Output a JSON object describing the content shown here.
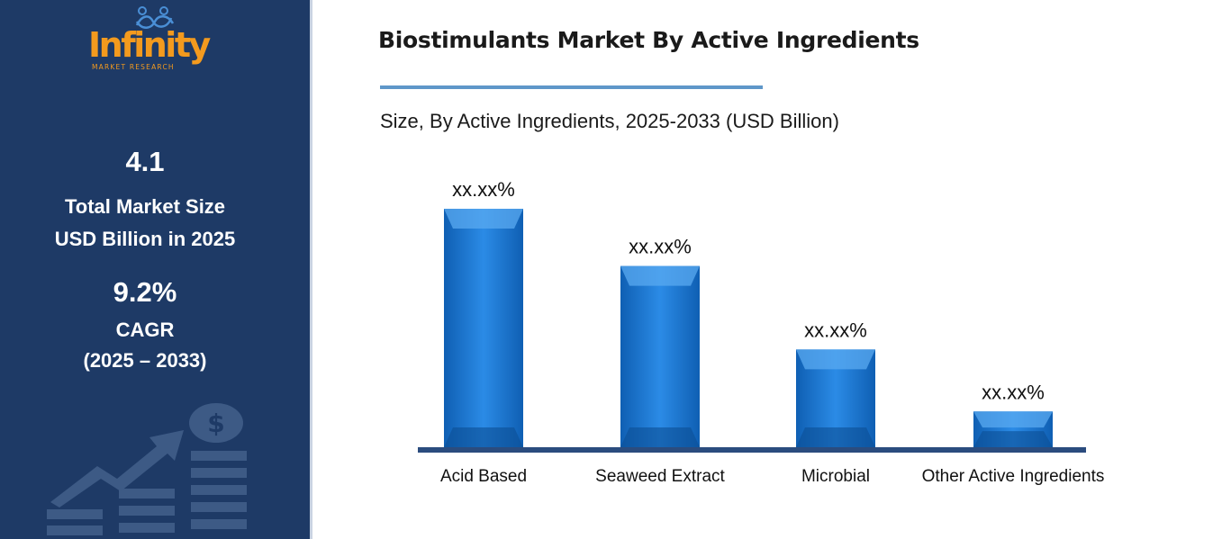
{
  "sidebar": {
    "logo": {
      "word": "Infinity",
      "sub": "MARKET RESEARCH",
      "icon": "people-infinity-icon"
    },
    "market_size_value": "4.1",
    "market_size_label_1": "Total Market Size",
    "market_size_label_2": "USD Billion in 2025",
    "cagr_value": "9.2%",
    "cagr_label": "CAGR",
    "cagr_period": "(2025 – 2033)",
    "decor_icon": "finance-growth-icon"
  },
  "chart_data": {
    "type": "bar",
    "title": "Biostimulants Market By Active Ingredients",
    "subtitle": "Size, By Active Ingredients, 2025-2033 (USD Billion)",
    "categories": [
      "Acid Based",
      "Seaweed Extract",
      "Microbial",
      "Other Active Ingredients"
    ],
    "values": [
      100,
      76,
      41,
      15
    ],
    "data_labels": [
      "xx.xx%",
      "xx.xx%",
      "xx.xx%",
      "xx.xx%"
    ],
    "ylim": [
      0,
      100
    ],
    "grid": false,
    "legend": "none"
  },
  "colors": {
    "sidebar_bg": "#1e3a66",
    "accent_orange": "#f39a1e",
    "bar_fill": "#1a75cf",
    "baseline": "#2b4c7e",
    "title_rule": "#5f97c9"
  }
}
